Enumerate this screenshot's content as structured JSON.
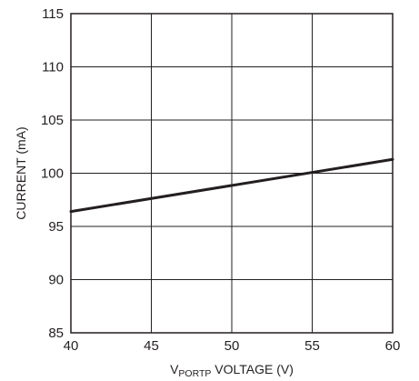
{
  "chart_data": {
    "type": "line",
    "title": "",
    "xlabel_sub_prefix": "V",
    "xlabel_sub": "PORTP",
    "xlabel_rest": " VOLTAGE (V)",
    "ylabel": "CURRENT (mA)",
    "xlim": [
      40,
      60
    ],
    "ylim": [
      85,
      115
    ],
    "x_ticks": [
      "40",
      "45",
      "50",
      "55",
      "60"
    ],
    "y_ticks": [
      "85",
      "90",
      "95",
      "100",
      "105",
      "110",
      "115"
    ],
    "grid": true,
    "series": [
      {
        "x": [
          40,
          60
        ],
        "y": [
          96.4,
          101.3
        ],
        "color": "#231f20"
      }
    ],
    "colors": {
      "axis": "#231f20",
      "grid": "#231f20",
      "line": "#231f20"
    }
  }
}
